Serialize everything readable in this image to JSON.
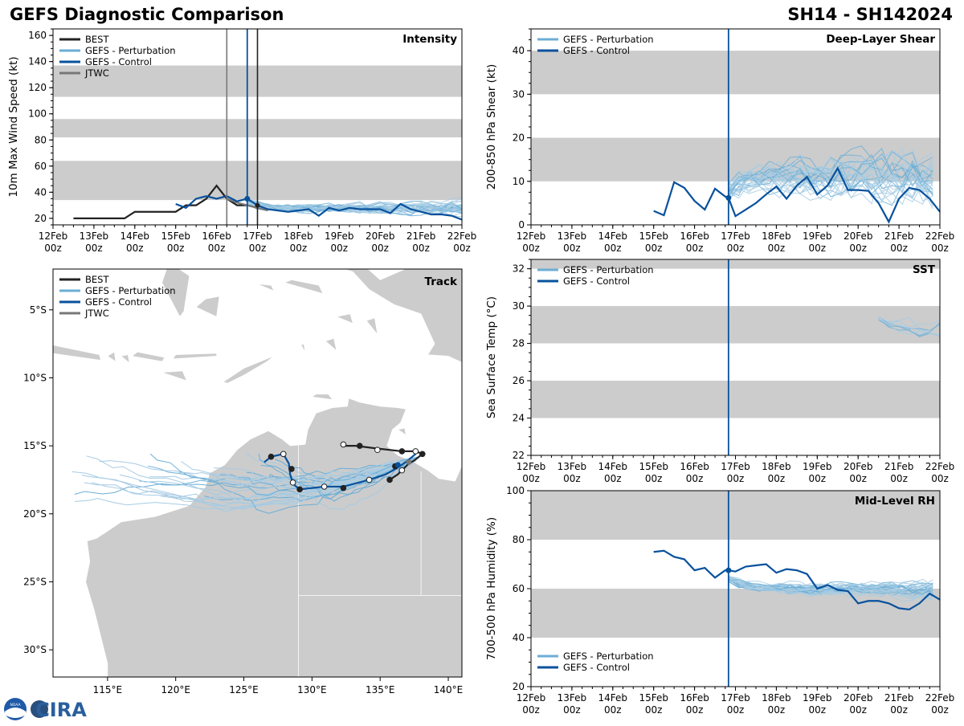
{
  "header": {
    "title_left": "GEFS Diagnostic Comparison",
    "title_right": "SH14 - SH142024"
  },
  "time_ticks": [
    {
      "day": "12Feb",
      "hour": "00z"
    },
    {
      "day": "13Feb",
      "hour": "00z"
    },
    {
      "day": "14Feb",
      "hour": "00z"
    },
    {
      "day": "15Feb",
      "hour": "00z"
    },
    {
      "day": "16Feb",
      "hour": "00z"
    },
    {
      "day": "17Feb",
      "hour": "00z"
    },
    {
      "day": "18Feb",
      "hour": "00z"
    },
    {
      "day": "19Feb",
      "hour": "00z"
    },
    {
      "day": "20Feb",
      "hour": "00z"
    },
    {
      "day": "21Feb",
      "hour": "00z"
    },
    {
      "day": "22Feb",
      "hour": "00z"
    }
  ],
  "colors": {
    "best": "#222222",
    "perturbation": "#6baed6",
    "perturbation_thin": "#a6cbe3",
    "control": "#08519c",
    "jtwc": "#777777",
    "band": "#cccccc",
    "land": "#cccccc"
  },
  "legends": {
    "four": [
      "BEST",
      "GEFS - Perturbation",
      "GEFS - Control",
      "JTWC"
    ],
    "two": [
      "GEFS - Perturbation",
      "GEFS - Control"
    ]
  },
  "chart_data": [
    {
      "id": "intensity",
      "type": "line",
      "title": "Intensity",
      "ylabel": "10m Max Wind Speed (kt)",
      "x_range_days": [
        0,
        10
      ],
      "ylim": [
        15,
        165
      ],
      "yticks": [
        20,
        40,
        60,
        80,
        100,
        120,
        140,
        160
      ],
      "bands": [
        [
          34,
          64
        ],
        [
          82,
          96
        ],
        [
          113,
          137
        ]
      ],
      "analysis_day": 4.75,
      "vlines_extra": [
        {
          "x": 4.25,
          "color": "jtwc"
        },
        {
          "x": 5.0,
          "color": "best"
        }
      ],
      "best": {
        "x": [
          0.5,
          1,
          1.5,
          1.75,
          2,
          2.5,
          3,
          3.25,
          3.5,
          3.75,
          4,
          4.25,
          4.5,
          4.75,
          5
        ],
        "y": [
          20,
          20,
          20,
          20,
          25,
          25,
          25,
          30,
          30,
          35,
          45,
          35,
          30,
          30,
          28
        ]
      },
      "jtwc": {
        "x": [
          4.25,
          4.5,
          4.75,
          5.0,
          5.25
        ],
        "y": [
          35,
          32,
          30,
          28,
          26
        ]
      },
      "control": {
        "x": [
          3,
          3.25,
          3.5,
          3.75,
          4,
          4.25,
          4.5,
          4.75,
          5,
          5.25,
          5.5,
          5.75,
          6,
          6.25,
          6.5,
          6.75,
          7,
          7.25,
          7.5,
          7.75,
          8,
          8.25,
          8.5,
          8.75,
          9,
          9.25,
          9.5,
          9.75,
          10
        ],
        "y": [
          31,
          28,
          35,
          37,
          35,
          37,
          33,
          35,
          30,
          27,
          26,
          25,
          26,
          27,
          22,
          28,
          26,
          28,
          27,
          27,
          27,
          24,
          31,
          27,
          25,
          23,
          23,
          22,
          19
        ]
      },
      "perturbation_spread": {
        "start": 4.75,
        "end": 10,
        "step": 0.25,
        "members": 30,
        "center": 28,
        "amp": 6,
        "start_value": 35,
        "min": 16,
        "max": 42
      }
    },
    {
      "id": "shear",
      "type": "line",
      "title": "Deep-Layer Shear",
      "ylabel": "200-850 hPa Shear (kt)",
      "x_range_days": [
        0,
        10
      ],
      "ylim": [
        0,
        45
      ],
      "yticks": [
        0,
        10,
        20,
        30,
        40
      ],
      "bands": [
        [
          10,
          20
        ],
        [
          30,
          40
        ]
      ],
      "analysis_day": 4.83,
      "control": {
        "x": [
          3,
          3.25,
          3.5,
          3.75,
          4,
          4.25,
          4.5,
          4.75,
          4.83,
          5,
          5.25,
          5.5,
          5.75,
          6,
          6.25,
          6.5,
          6.75,
          7,
          7.25,
          7.5,
          7.75,
          8,
          8.25,
          8.5,
          8.75,
          9,
          9.25,
          9.5,
          9.75,
          10
        ],
        "y": [
          3.2,
          2.2,
          9.8,
          8.5,
          5.5,
          3.5,
          8.3,
          6.5,
          6.2,
          2,
          3.5,
          5,
          7,
          8.8,
          6,
          9,
          11,
          7,
          9,
          13,
          8,
          8,
          7.8,
          5,
          0.7,
          6,
          8.5,
          8,
          6,
          3
        ]
      },
      "perturbation_spread": {
        "start": 4.83,
        "end": 10,
        "step": 0.25,
        "members": 30,
        "center": 11,
        "amp": 7,
        "start_value": 6.2,
        "min": 0.5,
        "max": 28.5
      }
    },
    {
      "id": "sst",
      "type": "line",
      "title": "SST",
      "ylabel": "Sea Surface Temp (°C)",
      "x_range_days": [
        0,
        10
      ],
      "ylim": [
        22,
        32.5
      ],
      "yticks": [
        22,
        24,
        26,
        28,
        30,
        32
      ],
      "bands": [
        [
          24,
          26
        ],
        [
          28,
          30
        ],
        [
          32,
          32.5
        ]
      ],
      "analysis_day": 4.83,
      "perturbation_spread": {
        "start": 8.5,
        "end": 10,
        "step": 0.25,
        "members": 8,
        "center": 28.7,
        "amp": 0.6,
        "start_value": 29.7,
        "min": 28.0,
        "max": 30.5
      }
    },
    {
      "id": "rh",
      "type": "line",
      "title": "Mid-Level RH",
      "ylabel": "700-500 hPa Humidity (%)",
      "x_range_days": [
        0,
        10
      ],
      "ylim": [
        20,
        100
      ],
      "yticks": [
        20,
        40,
        60,
        80,
        100
      ],
      "bands": [
        [
          40,
          60
        ],
        [
          80,
          100
        ]
      ],
      "analysis_day": 4.83,
      "control": {
        "x": [
          3,
          3.25,
          3.5,
          3.75,
          4,
          4.25,
          4.5,
          4.75,
          4.83,
          5,
          5.25,
          5.5,
          5.75,
          6,
          6.25,
          6.5,
          6.75,
          7,
          7.25,
          7.5,
          7.75,
          8,
          8.25,
          8.5,
          8.75,
          9,
          9.25,
          9.5,
          9.75,
          10
        ],
        "y": [
          75,
          75.5,
          73,
          72,
          67.5,
          68.5,
          64.5,
          67.5,
          67.5,
          67,
          69,
          69.5,
          70,
          66.5,
          68,
          67.5,
          66,
          60,
          61.5,
          59.5,
          59,
          54,
          55,
          55,
          54,
          52,
          51.5,
          54,
          58,
          55.5
        ]
      },
      "perturbation_spread": {
        "start": 4.83,
        "end": 10,
        "step": 0.25,
        "members": 30,
        "center": 60,
        "amp": 4,
        "start_value": 67.5,
        "min": 44,
        "max": 72
      }
    },
    {
      "id": "track",
      "type": "scatter",
      "title": "Track",
      "lon_range": [
        111,
        141
      ],
      "lat_range": [
        -32,
        -2
      ],
      "lon_ticks": [
        "115°E",
        "120°E",
        "125°E",
        "130°E",
        "135°E",
        "140°E"
      ],
      "lon_tick_values": [
        115,
        120,
        125,
        130,
        135,
        140
      ],
      "lat_ticks": [
        "5°S",
        "10°S",
        "15°S",
        "20°S",
        "25°S",
        "30°S"
      ],
      "lat_tick_values": [
        -5,
        -10,
        -15,
        -20,
        -25,
        -30
      ],
      "best_track": [
        [
          132.3,
          -15.0
        ],
        [
          133.2,
          -15.0
        ],
        [
          134.8,
          -15.2
        ],
        [
          136.6,
          -15.4
        ],
        [
          137.6,
          -15.4
        ],
        [
          138.1,
          -15.6
        ],
        [
          137.6,
          -16.0
        ],
        [
          137.0,
          -16.4
        ],
        [
          136.6,
          -16.8
        ],
        [
          136.3,
          -17.1
        ],
        [
          135.7,
          -17.5
        ]
      ],
      "control_track": [
        [
          137.6,
          -15.6
        ],
        [
          137.0,
          -16.1
        ],
        [
          136.3,
          -16.6
        ],
        [
          135.4,
          -17.1
        ],
        [
          134.2,
          -17.5
        ],
        [
          132.3,
          -18.0
        ],
        [
          130.9,
          -18.0
        ],
        [
          129.1,
          -18.2
        ],
        [
          128.6,
          -17.8
        ],
        [
          128.4,
          -17.1
        ],
        [
          128.3,
          -16.3
        ],
        [
          127.9,
          -15.6
        ],
        [
          127.0,
          -15.8
        ],
        [
          126.5,
          -16.2
        ]
      ],
      "control_points": [
        [
          136.1,
          -16.5
        ],
        [
          134.2,
          -17.5
        ],
        [
          132.3,
          -18.1
        ],
        [
          130.9,
          -18.0
        ],
        [
          129.1,
          -18.2
        ],
        [
          128.6,
          -17.7
        ],
        [
          128.5,
          -16.7
        ],
        [
          127.9,
          -15.6
        ],
        [
          127.0,
          -15.8
        ]
      ],
      "best_points": [
        [
          132.3,
          -14.9
        ],
        [
          133.5,
          -15.0
        ],
        [
          134.8,
          -15.3
        ],
        [
          136.6,
          -15.4
        ],
        [
          137.6,
          -15.4
        ],
        [
          138.1,
          -15.6
        ],
        [
          136.6,
          -16.8
        ],
        [
          135.7,
          -17.5
        ]
      ],
      "perturbation_spread": {
        "members": 30
      }
    }
  ],
  "logo": {
    "noaa": "NOAA",
    "cira": "CIRA"
  }
}
